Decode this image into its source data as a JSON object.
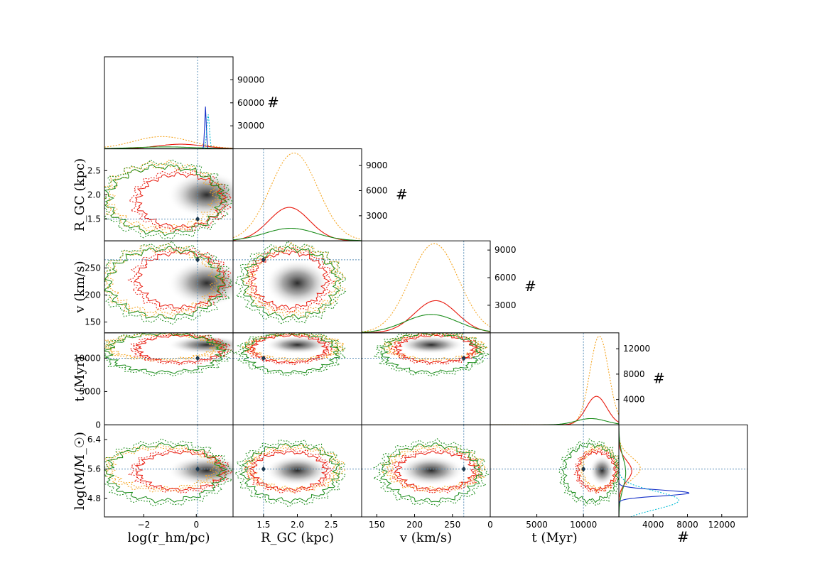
{
  "chart_data": {
    "type": "corner",
    "title": "",
    "variables": [
      {
        "key": "logr",
        "label": "log(r_hm/pc)",
        "range": [
          -3.5,
          1.4
        ],
        "ticks": [
          -2,
          0
        ],
        "tick_labels": [
          "−2",
          "0"
        ],
        "true": 0.05
      },
      {
        "key": "rgc",
        "label": "R_GC (kpc)",
        "range": [
          1.05,
          2.95
        ],
        "ticks": [
          1.5,
          2.0,
          2.5
        ],
        "tick_labels": [
          "1.5",
          "2.0",
          "2.5"
        ],
        "true": 1.5
      },
      {
        "key": "v",
        "label": "v (km/s)",
        "range": [
          130,
          300
        ],
        "ticks": [
          150,
          200,
          250
        ],
        "tick_labels": [
          "150",
          "200",
          "250"
        ],
        "true": 265
      },
      {
        "key": "t",
        "label": "t (Myr)",
        "range": [
          0,
          13800
        ],
        "ticks": [
          0,
          5000,
          10000
        ],
        "tick_labels": [
          "0",
          "5000",
          "10000"
        ],
        "true": 10000
      },
      {
        "key": "logm",
        "label": "log(M/M_☉)",
        "range": [
          4.3,
          6.8
        ],
        "ticks": [
          4.8,
          5.6,
          6.4
        ],
        "tick_labels": [
          "4.8",
          "5.6",
          "6.4"
        ],
        "true": 5.6
      }
    ],
    "count_axis_label": "#",
    "diag_hist": [
      {
        "var": "logr",
        "ylim": [
          0,
          120000
        ],
        "ticks": [
          30000,
          60000,
          90000
        ],
        "tick_labels": [
          "30000",
          "60000",
          "90000"
        ]
      },
      {
        "var": "rgc",
        "ylim": [
          0,
          11000
        ],
        "ticks": [
          3000,
          6000,
          9000
        ],
        "tick_labels": [
          "3000",
          "6000",
          "9000"
        ]
      },
      {
        "var": "v",
        "ylim": [
          0,
          10000
        ],
        "ticks": [
          3000,
          6000,
          9000
        ],
        "tick_labels": [
          "3000",
          "6000",
          "9000"
        ]
      },
      {
        "var": "t",
        "ylim": [
          0,
          14500
        ],
        "ticks": [
          4000,
          8000,
          12000
        ],
        "tick_labels": [
          "4000",
          "8000",
          "12000"
        ]
      },
      {
        "var": "logm",
        "xlim": [
          0,
          15000
        ],
        "ticks": [
          4000,
          8000,
          12000
        ],
        "tick_labels": [
          "4000",
          "8000",
          "12000"
        ],
        "orientation": "horizontal"
      }
    ],
    "series": [
      {
        "name": "orange",
        "color": "#f5a623",
        "style": "dotted",
        "means": {
          "logr": -1.3,
          "rgc": 1.95,
          "v": 226,
          "t": 11700,
          "logm": 5.62
        },
        "sds": {
          "logr": 1.1,
          "rgc": 0.35,
          "v": 32,
          "t": 1000,
          "logm": 0.3
        },
        "peaks": [
          16000,
          10500,
          9700,
          14000,
          2500
        ]
      },
      {
        "name": "red",
        "color": "#e8180c",
        "style": "solid",
        "means": {
          "logr": -0.6,
          "rgc": 1.88,
          "v": 228,
          "t": 11400,
          "logm": 5.55
        },
        "sds": {
          "logr": 0.9,
          "rgc": 0.3,
          "v": 28,
          "t": 1100,
          "logm": 0.28
        },
        "peaks": [
          6000,
          4000,
          3500,
          4500,
          1500
        ]
      },
      {
        "name": "green",
        "color": "#1a8c1a",
        "style": "solid",
        "means": {
          "logr": -1.2,
          "rgc": 1.9,
          "v": 222,
          "t": 10800,
          "logm": 5.5
        },
        "sds": {
          "logr": 1.2,
          "rgc": 0.38,
          "v": 35,
          "t": 1600,
          "logm": 0.42
        },
        "peaks": [
          2500,
          1500,
          2000,
          1000,
          800
        ]
      },
      {
        "name": "blue",
        "color": "#1530c8",
        "style": "solid",
        "means": {
          "logr": 0.35,
          "logm": 4.95
        },
        "sds": {
          "logr": 0.03,
          "logm": 0.08
        },
        "peaks": [
          55000,
          0,
          0,
          0,
          8200
        ]
      },
      {
        "name": "cyan",
        "color": "#00bcd4",
        "style": "dotted",
        "means": {
          "logr": 0.45,
          "logm": 4.75
        },
        "sds": {
          "logr": 0.05,
          "logm": 0.25
        },
        "peaks": [
          45000,
          0,
          0,
          0,
          7000
        ]
      }
    ],
    "density_center": {
      "logr": 0.4,
      "rgc": 2.0,
      "v": 222,
      "t": 12000,
      "logm": 5.56
    },
    "reference_lines": {
      "color": "#5a8fb8",
      "style": "dotted"
    },
    "colors": {
      "density": "#202020",
      "marker": "#1c3a52",
      "axes": "#000000"
    }
  }
}
